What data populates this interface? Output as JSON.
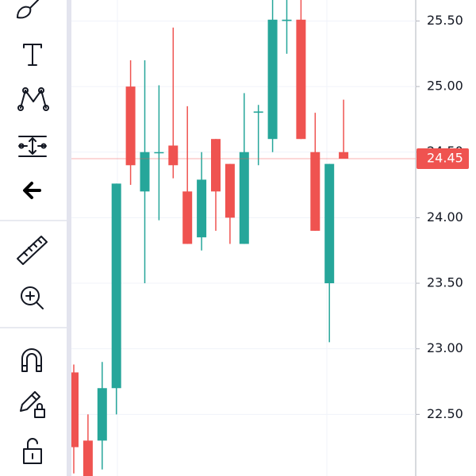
{
  "chart_data": {
    "type": "candlestick",
    "categories": [
      null,
      null,
      null,
      null,
      null,
      null,
      null,
      null,
      null,
      null,
      null,
      null,
      null,
      null,
      null,
      null,
      null,
      null,
      null,
      null
    ],
    "series": [
      {
        "up_color": "#26a69a",
        "down_color": "#ef5350",
        "open": [
          22.82,
          22.3,
          22.3,
          22.7,
          25.0,
          24.2,
          24.5,
          24.55,
          24.2,
          23.85,
          24.6,
          24.41,
          23.8,
          24.8,
          24.6,
          25.5,
          25.51,
          24.5,
          23.5,
          24.5
        ],
        "high": [
          22.88,
          22.5,
          22.9,
          24.26,
          25.2,
          25.2,
          25.01,
          25.45,
          24.85,
          24.5,
          24.6,
          24.41,
          24.95,
          24.86,
          25.7,
          25.7,
          25.7,
          24.8,
          24.41,
          24.9
        ],
        "low": [
          22.05,
          21.9,
          22.08,
          22.5,
          24.25,
          23.5,
          23.98,
          24.3,
          23.8,
          23.75,
          23.9,
          23.8,
          23.8,
          24.4,
          24.5,
          25.25,
          24.6,
          23.9,
          23.05,
          24.45
        ],
        "close": [
          22.25,
          22.0,
          22.7,
          24.26,
          24.4,
          24.5,
          24.5,
          24.4,
          23.8,
          24.29,
          24.2,
          24.0,
          24.5,
          24.81,
          25.51,
          25.51,
          24.6,
          23.9,
          24.41,
          24.45
        ]
      }
    ],
    "ylim": [
      22.03,
      25.66
    ],
    "yticks": [
      {
        "value": 22.5,
        "label": "22.50"
      },
      {
        "value": 23.0,
        "label": "23.00"
      },
      {
        "value": 23.5,
        "label": "23.50"
      },
      {
        "value": 24.0,
        "label": "24.00"
      },
      {
        "value": 24.5,
        "label": "24.50"
      },
      {
        "value": 25.0,
        "label": "25.00"
      },
      {
        "value": 25.5,
        "label": "25.50"
      }
    ],
    "current_price": {
      "value": 24.45,
      "label": "24.45",
      "color": "#ef5350"
    },
    "grid": true
  }
}
